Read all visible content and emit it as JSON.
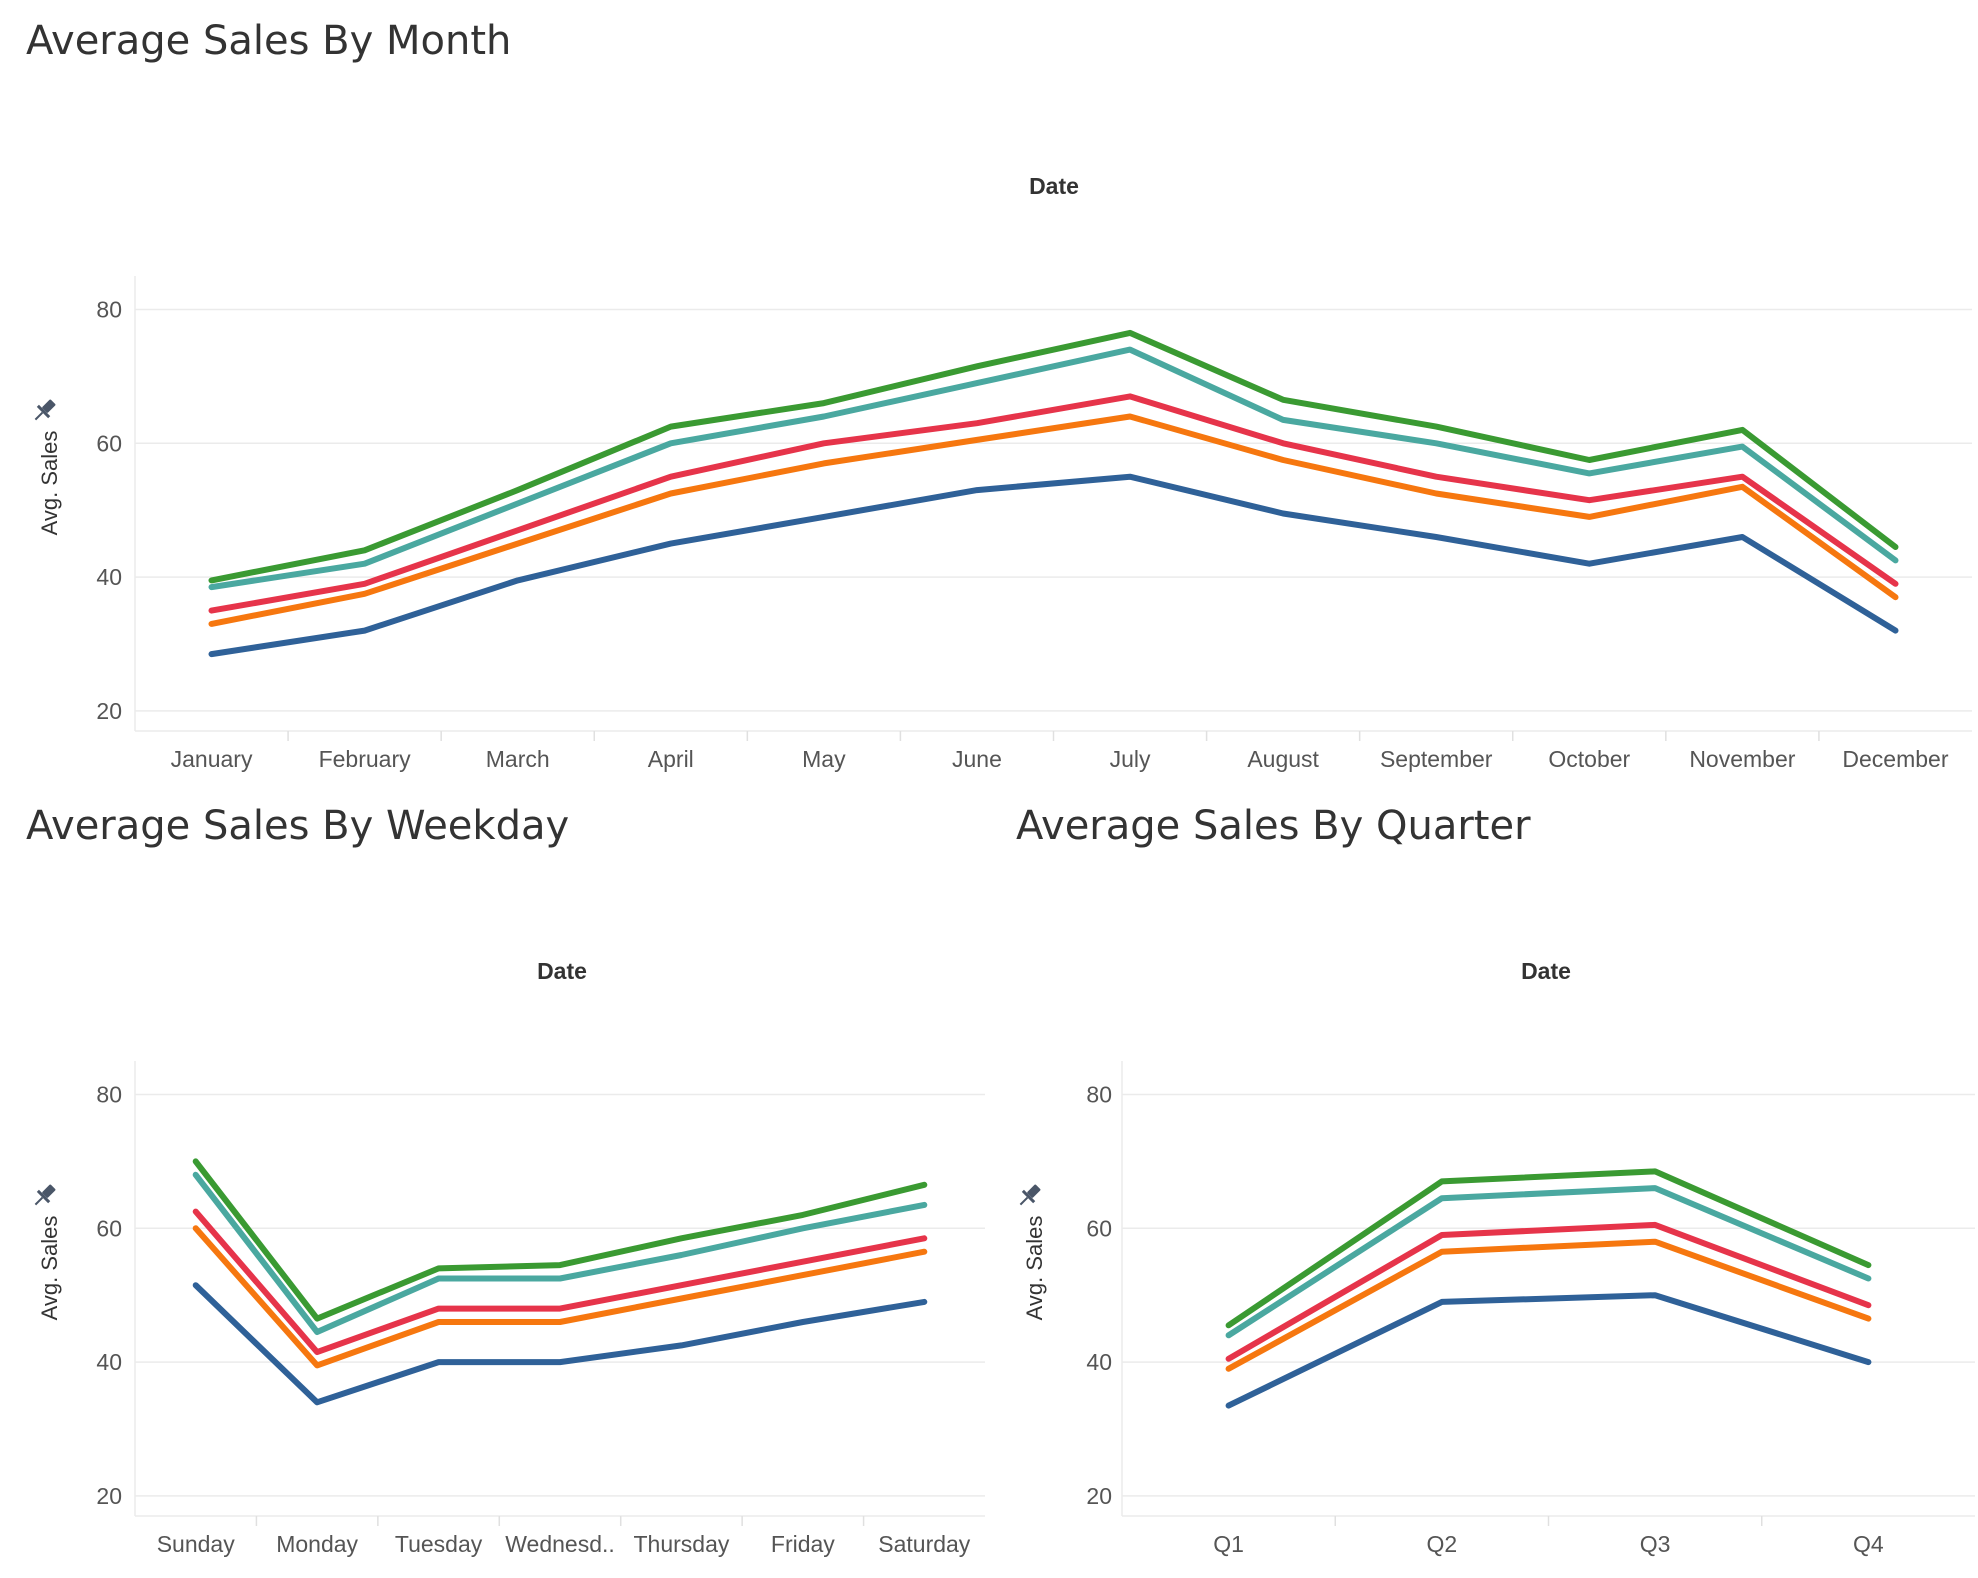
{
  "titles": {
    "month": "Average Sales By Month",
    "weekday": "Average Sales By Weekday",
    "quarter": "Average Sales By Quarter"
  },
  "colors": {
    "green": "#3a9a32",
    "teal": "#4aa8a0",
    "red": "#e6344a",
    "orange": "#f6770f",
    "blue": "#2f6198",
    "grid": "#ebebeb",
    "axis_text": "#555555",
    "pin_icon": "#4a5668"
  },
  "chart_data": [
    {
      "id": "month",
      "type": "line",
      "title": "Average Sales By Month",
      "header": "Date",
      "ylabel": "Avg. Sales",
      "ylabel_icon": "pin-icon",
      "ylim": [
        17,
        85
      ],
      "yticks": [
        20,
        40,
        60,
        80
      ],
      "grid": true,
      "legend": "none",
      "categories": [
        "January",
        "February",
        "March",
        "April",
        "May",
        "June",
        "July",
        "August",
        "September",
        "October",
        "November",
        "December"
      ],
      "series": [
        {
          "color": "#3a9a32",
          "values": [
            39.5,
            44,
            53,
            62.5,
            66,
            71.5,
            76.5,
            66.5,
            62.5,
            57.5,
            62,
            44.5
          ]
        },
        {
          "color": "#4aa8a0",
          "values": [
            38.5,
            42,
            51,
            60,
            64,
            69,
            74,
            63.5,
            60,
            55.5,
            59.5,
            42.5
          ]
        },
        {
          "color": "#e6344a",
          "values": [
            35,
            39,
            47,
            55,
            60,
            63,
            67,
            60,
            55,
            51.5,
            55,
            39
          ]
        },
        {
          "color": "#f6770f",
          "values": [
            33,
            37.5,
            45,
            52.5,
            57,
            60.5,
            64,
            57.5,
            52.5,
            49,
            53.5,
            37
          ]
        },
        {
          "color": "#2f6198",
          "values": [
            28.5,
            32,
            39.5,
            45,
            49,
            53,
            55,
            49.5,
            46,
            42,
            46,
            32
          ]
        }
      ]
    },
    {
      "id": "weekday",
      "type": "line",
      "title": "Average Sales By Weekday",
      "header": "Date",
      "ylabel": "Avg. Sales",
      "ylabel_icon": "pin-icon",
      "ylim": [
        17,
        85
      ],
      "yticks": [
        20,
        40,
        60,
        80
      ],
      "grid": true,
      "legend": "none",
      "categories": [
        "Sunday",
        "Monday",
        "Tuesday",
        "Wednesd..",
        "Thursday",
        "Friday",
        "Saturday"
      ],
      "series": [
        {
          "color": "#3a9a32",
          "values": [
            70,
            46.5,
            54,
            54.5,
            58.5,
            62,
            66.5
          ]
        },
        {
          "color": "#4aa8a0",
          "values": [
            68,
            44.5,
            52.5,
            52.5,
            56,
            60,
            63.5
          ]
        },
        {
          "color": "#e6344a",
          "values": [
            62.5,
            41.5,
            48,
            48,
            51.5,
            55,
            58.5
          ]
        },
        {
          "color": "#f6770f",
          "values": [
            60,
            39.5,
            46,
            46,
            49.5,
            53,
            56.5
          ]
        },
        {
          "color": "#2f6198",
          "values": [
            51.5,
            34,
            40,
            40,
            42.5,
            46,
            49
          ]
        }
      ]
    },
    {
      "id": "quarter",
      "type": "line",
      "title": "Average Sales By Quarter",
      "header": "Date",
      "ylabel": "Avg. Sales",
      "ylabel_icon": "pin-icon",
      "ylim": [
        17,
        85
      ],
      "yticks": [
        20,
        40,
        60,
        80
      ],
      "grid": true,
      "legend": "none",
      "categories": [
        "Q1",
        "Q2",
        "Q3",
        "Q4"
      ],
      "series": [
        {
          "color": "#3a9a32",
          "values": [
            45.5,
            67,
            68.5,
            54.5
          ]
        },
        {
          "color": "#4aa8a0",
          "values": [
            44,
            64.5,
            66,
            52.5
          ]
        },
        {
          "color": "#e6344a",
          "values": [
            40.5,
            59,
            60.5,
            48.5
          ]
        },
        {
          "color": "#f6770f",
          "values": [
            39,
            56.5,
            58,
            46.5
          ]
        },
        {
          "color": "#2f6198",
          "values": [
            33.5,
            49,
            50,
            40
          ]
        }
      ]
    }
  ]
}
